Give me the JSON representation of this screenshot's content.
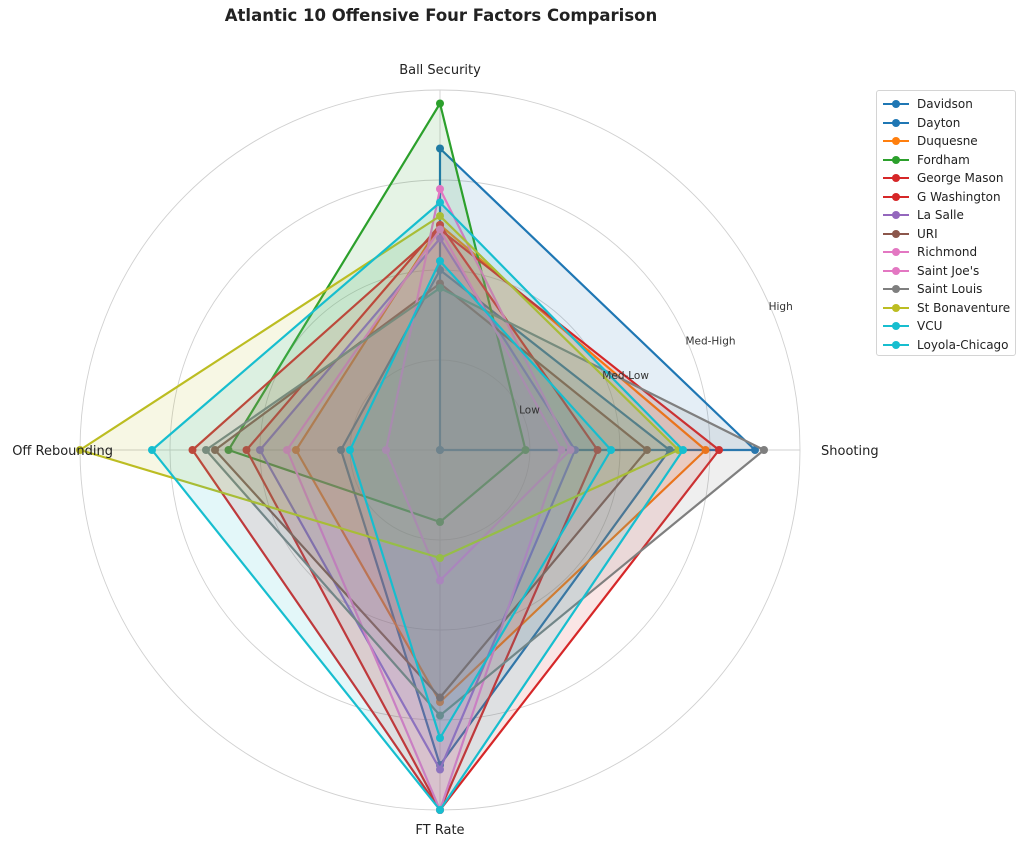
{
  "chart_data": {
    "type": "radar",
    "title": "Atlantic 10 Offensive Four Factors Comparison",
    "axes": [
      "Shooting",
      "FT Rate",
      "Off Rebounding",
      "Ball Security"
    ],
    "rings": [
      "Low",
      "Med-Low",
      "Med-High",
      "High"
    ],
    "range": [
      0,
      4
    ],
    "grid": true,
    "legend_position": "right",
    "series": [
      {
        "name": "Davidson",
        "color": "#1f77b4",
        "values": [
          3.5,
          0.0,
          0.0,
          3.35
        ]
      },
      {
        "name": "Dayton",
        "color": "#1f77b4",
        "values": [
          2.55,
          3.5,
          1.1,
          2.0
        ]
      },
      {
        "name": "Duquesne",
        "color": "#ff7f0e",
        "values": [
          2.95,
          2.8,
          1.6,
          2.5
        ]
      },
      {
        "name": "Fordham",
        "color": "#2ca02c",
        "values": [
          0.95,
          0.8,
          2.35,
          3.85
        ]
      },
      {
        "name": "George Mason",
        "color": "#d62728",
        "values": [
          3.1,
          4.0,
          2.75,
          2.45
        ]
      },
      {
        "name": "G Washington",
        "color": "#d62728",
        "values": [
          1.75,
          4.0,
          2.15,
          2.5
        ]
      },
      {
        "name": "La Salle",
        "color": "#9467bd",
        "values": [
          1.5,
          3.55,
          2.0,
          2.35
        ]
      },
      {
        "name": "URI",
        "color": "#8c564b",
        "values": [
          2.3,
          2.75,
          2.5,
          1.85
        ]
      },
      {
        "name": "Richmond",
        "color": "#e377c2",
        "values": [
          1.45,
          1.45,
          0.6,
          2.9
        ]
      },
      {
        "name": "Saint Joe's",
        "color": "#e377c2",
        "values": [
          1.35,
          4.0,
          1.7,
          2.45
        ]
      },
      {
        "name": "Saint Louis",
        "color": "#7f7f7f",
        "values": [
          3.6,
          2.95,
          2.6,
          1.8
        ]
      },
      {
        "name": "St Bonaventure",
        "color": "#bcbd22",
        "values": [
          2.65,
          1.2,
          4.0,
          2.6
        ]
      },
      {
        "name": "VCU",
        "color": "#17becf",
        "values": [
          1.9,
          3.2,
          1.0,
          2.1
        ]
      },
      {
        "name": "Loyola-Chicago",
        "color": "#17becf",
        "values": [
          2.7,
          4.0,
          3.2,
          2.75
        ]
      }
    ]
  }
}
